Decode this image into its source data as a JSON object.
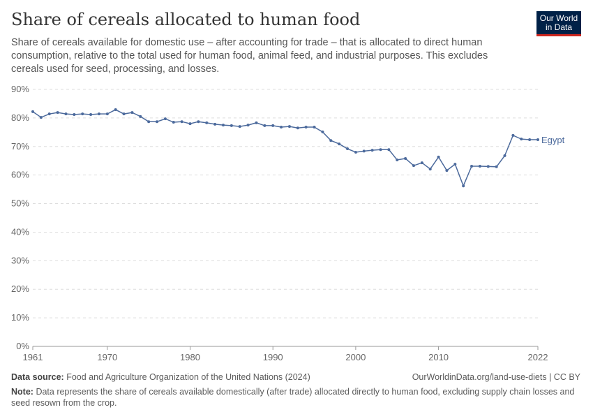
{
  "title": "Share of cereals allocated to human food",
  "subtitle": "Share of cereals available for domestic use – after accounting for trade – that is allocated to direct human consumption, relative to the total used for human food, animal feed, and industrial purposes. This excludes cereals used for seed, processing, and losses.",
  "logo": {
    "line1": "Our World",
    "line2": "in Data"
  },
  "footer": {
    "source_label": "Data source:",
    "source": "Food and Agriculture Organization of the United Nations (2024)",
    "url": "OurWorldinData.org/land-use-diets | CC BY",
    "note_label": "Note:",
    "note": "Data represents the share of cereals available domestically (after trade) allocated directly to human food, excluding supply chain losses and seed resown from the crop."
  },
  "chart_data": {
    "type": "line",
    "title": "Share of cereals allocated to human food",
    "xlabel": "",
    "ylabel": "",
    "ylim": [
      0,
      90
    ],
    "xlim": [
      1961,
      2022
    ],
    "yticks": [
      "0%",
      "10%",
      "20%",
      "30%",
      "40%",
      "50%",
      "60%",
      "70%",
      "80%",
      "90%"
    ],
    "xticks": [
      "1961",
      "1970",
      "1980",
      "1990",
      "2000",
      "2010",
      "2022"
    ],
    "grid": "horizontal dashed",
    "color": "#4c6a9c",
    "series": [
      {
        "name": "Egypt",
        "x": [
          1961,
          1962,
          1963,
          1964,
          1965,
          1966,
          1967,
          1968,
          1969,
          1970,
          1971,
          1972,
          1973,
          1974,
          1975,
          1976,
          1977,
          1978,
          1979,
          1980,
          1981,
          1982,
          1983,
          1984,
          1985,
          1986,
          1987,
          1988,
          1989,
          1990,
          1991,
          1992,
          1993,
          1994,
          1995,
          1996,
          1997,
          1998,
          1999,
          2000,
          2001,
          2002,
          2003,
          2004,
          2005,
          2006,
          2007,
          2008,
          2009,
          2010,
          2011,
          2012,
          2013,
          2014,
          2015,
          2016,
          2017,
          2018,
          2019,
          2020,
          2021,
          2022
        ],
        "values": [
          82.2,
          80.2,
          81.4,
          81.9,
          81.4,
          81.2,
          81.4,
          81.2,
          81.4,
          81.4,
          82.9,
          81.4,
          81.9,
          80.5,
          78.7,
          78.7,
          79.7,
          78.5,
          78.7,
          78.0,
          78.7,
          78.3,
          77.8,
          77.5,
          77.3,
          77.0,
          77.5,
          78.3,
          77.3,
          77.3,
          76.8,
          77.0,
          76.5,
          76.8,
          76.8,
          75.1,
          72.1,
          70.9,
          69.2,
          68.0,
          68.4,
          68.7,
          68.9,
          68.9,
          65.3,
          65.8,
          63.3,
          64.3,
          62.1,
          66.3,
          61.6,
          63.8,
          56.2,
          63.1,
          63.1,
          63.0,
          62.9,
          66.8,
          73.9,
          72.6,
          72.4,
          72.4
        ]
      }
    ]
  }
}
